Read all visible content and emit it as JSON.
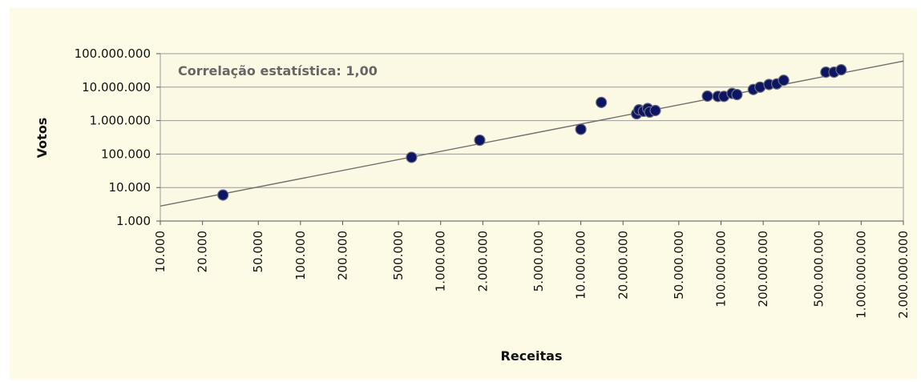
{
  "colors": {
    "panel_bg": "#fdfbe5",
    "plot_bg": "#fbf9e3",
    "gridline": "#9a9a9a",
    "marker": "#0d1562",
    "marker_edge": "#6b7080",
    "trendline": "#707070"
  },
  "chart_data": {
    "type": "scatter",
    "title": "",
    "xlabel": "Receitas",
    "ylabel": "Votos",
    "annotation": "Correlação estatística: 1,00",
    "x_scale": "log",
    "y_scale": "log",
    "xlim": [
      10000,
      2000000000
    ],
    "ylim": [
      1000,
      100000000
    ],
    "grid": "horizontal",
    "legend": "none",
    "x_ticks": [
      {
        "value": 10000,
        "label": "10.000"
      },
      {
        "value": 20000,
        "label": "20.000"
      },
      {
        "value": 50000,
        "label": "50.000"
      },
      {
        "value": 100000,
        "label": "100.000"
      },
      {
        "value": 200000,
        "label": "200.000"
      },
      {
        "value": 500000,
        "label": "500.000"
      },
      {
        "value": 1000000,
        "label": "1.000.000"
      },
      {
        "value": 2000000,
        "label": "2.000.000"
      },
      {
        "value": 5000000,
        "label": "5.000.000"
      },
      {
        "value": 10000000,
        "label": "10.000.000"
      },
      {
        "value": 20000000,
        "label": "20.000.000"
      },
      {
        "value": 50000000,
        "label": "50.000.000"
      },
      {
        "value": 100000000,
        "label": "100.000.000"
      },
      {
        "value": 200000000,
        "label": "200.000.000"
      },
      {
        "value": 500000000,
        "label": "500.000.000"
      },
      {
        "value": 1000000000,
        "label": "1.000.000.000"
      },
      {
        "value": 2000000000,
        "label": "2.000.000.000"
      }
    ],
    "y_ticks": [
      {
        "value": 1000,
        "label": "1.000"
      },
      {
        "value": 10000,
        "label": "10.000"
      },
      {
        "value": 100000,
        "label": "100.000"
      },
      {
        "value": 1000000,
        "label": "1.000.000"
      },
      {
        "value": 10000000,
        "label": "10.000.000"
      },
      {
        "value": 100000000,
        "label": "100.000.000"
      }
    ],
    "trendline": {
      "x": [
        10000,
        2000000000
      ],
      "y": [
        2800,
        60000000
      ]
    },
    "points": [
      {
        "x": 28000,
        "y": 6000
      },
      {
        "x": 620000,
        "y": 80000
      },
      {
        "x": 1900000,
        "y": 260000
      },
      {
        "x": 10000000,
        "y": 550000
      },
      {
        "x": 14000000,
        "y": 3500000
      },
      {
        "x": 25000000,
        "y": 1600000
      },
      {
        "x": 26000000,
        "y": 2100000
      },
      {
        "x": 28000000,
        "y": 1900000
      },
      {
        "x": 30000000,
        "y": 2300000
      },
      {
        "x": 31000000,
        "y": 1800000
      },
      {
        "x": 34000000,
        "y": 2000000
      },
      {
        "x": 80000000,
        "y": 5400000
      },
      {
        "x": 95000000,
        "y": 5300000
      },
      {
        "x": 105000000,
        "y": 5300000
      },
      {
        "x": 120000000,
        "y": 6500000
      },
      {
        "x": 130000000,
        "y": 6000000
      },
      {
        "x": 170000000,
        "y": 8500000
      },
      {
        "x": 190000000,
        "y": 10000000
      },
      {
        "x": 220000000,
        "y": 12000000
      },
      {
        "x": 250000000,
        "y": 12500000
      },
      {
        "x": 280000000,
        "y": 16000000
      },
      {
        "x": 560000000,
        "y": 28000000
      },
      {
        "x": 640000000,
        "y": 28000000
      },
      {
        "x": 720000000,
        "y": 33000000
      }
    ]
  }
}
